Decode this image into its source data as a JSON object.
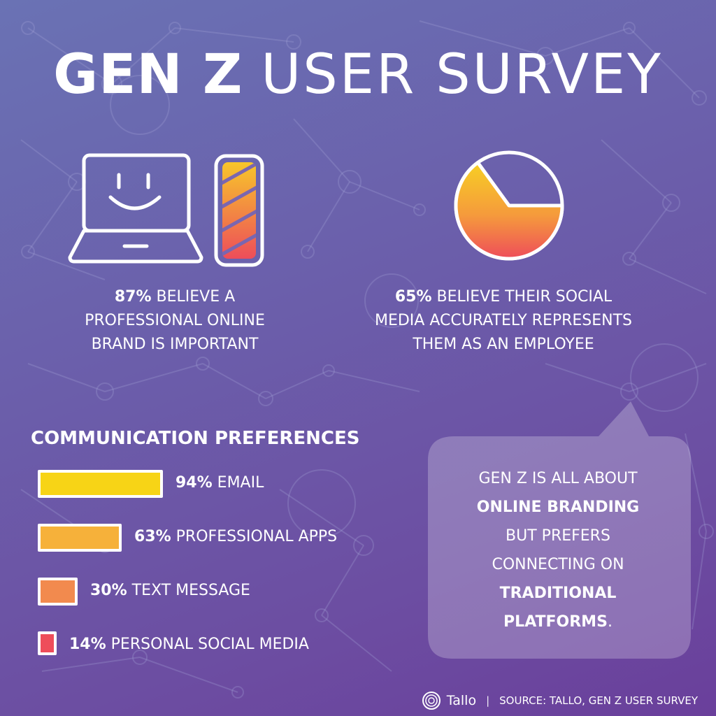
{
  "title": {
    "bold": "GEN Z",
    "light": "USER SURVEY"
  },
  "stats": [
    {
      "value": "87%",
      "text_line1": "BELIEVE A",
      "text_line2": "PROFESSIONAL ONLINE",
      "text_line3": "BRAND IS IMPORTANT"
    },
    {
      "value": "65%",
      "text_line1": "BELIEVE THEIR SOCIAL",
      "text_line2": "MEDIA ACCURATELY REPRESENTS",
      "text_line3": "THEM AS AN EMPLOYEE"
    }
  ],
  "icons": {
    "laptop": "smiling-laptop-icon",
    "phone": "phone-battery-icon",
    "pie": "pie-65-icon"
  },
  "section_title": "COMMUNICATION PREFERENCES",
  "bubble": {
    "line1": "GEN Z IS ALL ABOUT",
    "line2": "ONLINE BRANDING",
    "line3": "BUT PREFERS",
    "line4": "CONNECTING ON",
    "line5": "TRADITIONAL",
    "line6": "PLATFORMS",
    "punct": "."
  },
  "footer": {
    "brand": "Tallo",
    "separator": "|",
    "source": "SOURCE: TALLO, GEN Z USER SURVEY"
  },
  "colors": {
    "yellow": "#f7d416",
    "light_orange": "#f6b13a",
    "orange": "#f28a4e",
    "red": "#ee4d5a"
  },
  "chart_data": [
    {
      "type": "bar",
      "title": "COMMUNICATION PREFERENCES",
      "categories": [
        "EMAIL",
        "PROFESSIONAL APPS",
        "TEXT MESSAGE",
        "PERSONAL SOCIAL MEDIA"
      ],
      "values": [
        94,
        63,
        30,
        14
      ],
      "value_labels": [
        "94%",
        "63%",
        "30%",
        "14%"
      ],
      "orientation": "horizontal"
    },
    {
      "type": "pie",
      "values": [
        65,
        35
      ],
      "value_labels": [
        "65%"
      ]
    }
  ]
}
